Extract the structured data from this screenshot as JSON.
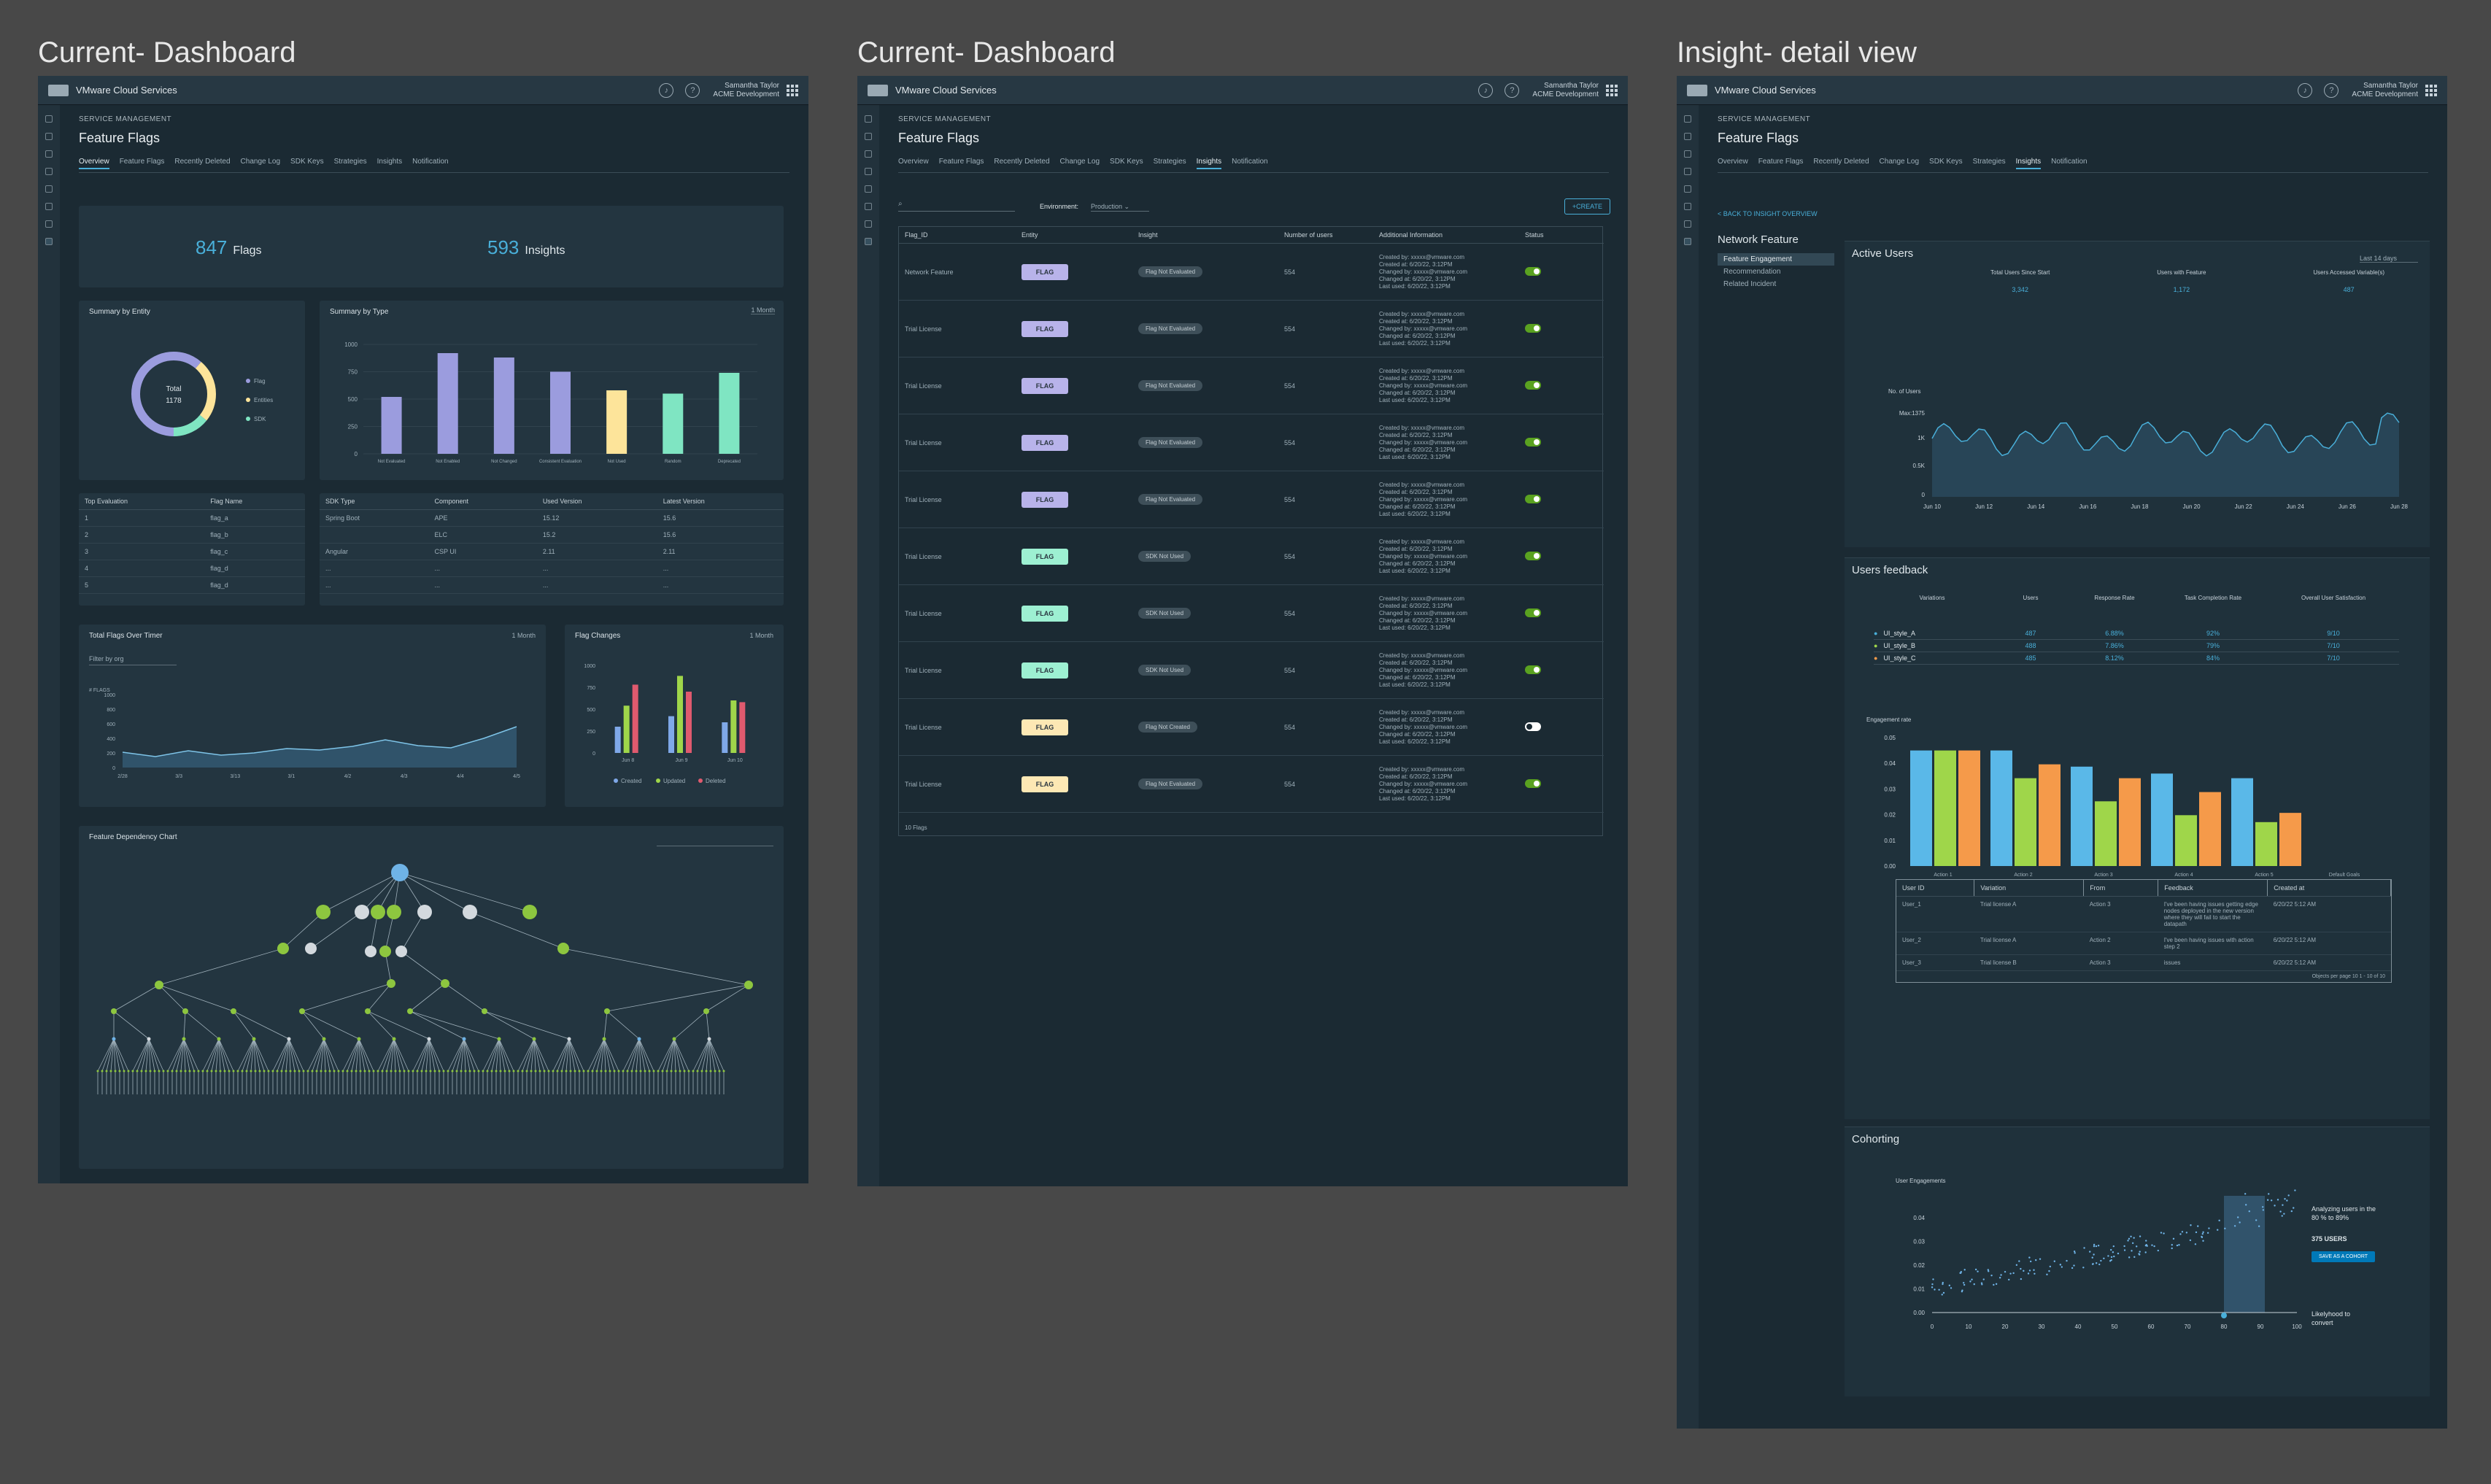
{
  "boards": {
    "b1": "Current- Dashboard",
    "b2": "Current- Dashboard",
    "b3": "Insight- detail view"
  },
  "header": {
    "app_name": "VMware Cloud Services",
    "user_name": "Samantha Taylor",
    "org": "ACME Development"
  },
  "page": {
    "section": "SERVICE MANAGEMENT",
    "title": "Feature Flags",
    "tabs": [
      "Overview",
      "Feature Flags",
      "Recently Deleted",
      "Change Log",
      "SDK Keys",
      "Strategies",
      "Insights",
      "Notification"
    ]
  },
  "overview": {
    "flags_count": "847",
    "flags_label": "Flags",
    "insights_count": "593",
    "insights_label": "Insights",
    "summary_entity_title": "Summary by Entity",
    "donut_center_1": "Total",
    "donut_center_2": "1178",
    "entity_legend": [
      "Flag",
      "Entities",
      "SDK"
    ],
    "summary_type_title": "Summary by Type",
    "summary_type_range": "1 Month",
    "type_chart": {
      "type": "bar",
      "categories": [
        "Not Evaluated",
        "Not Enabled",
        "Not Changed",
        "Consistent Evaluation",
        "Not Used",
        "Random",
        "Deprecated"
      ],
      "values": [
        520,
        920,
        880,
        750,
        580,
        550,
        740
      ],
      "colors": [
        "#9b9cde",
        "#9b9cde",
        "#9b9cde",
        "#9b9cde",
        "#fde49a",
        "#7fe5c2",
        "#7fe5c2"
      ],
      "yticks": [
        "1000",
        "750",
        "500",
        "250",
        "0"
      ],
      "ylim": [
        0,
        1000
      ]
    },
    "top_eval_headers": [
      "Top Evaluation",
      "Flag Name"
    ],
    "top_eval_rows": [
      [
        "1",
        "flag_a"
      ],
      [
        "2",
        "flag_b"
      ],
      [
        "3",
        "flag_c"
      ],
      [
        "4",
        "flag_d"
      ],
      [
        "5",
        "flag_d"
      ]
    ],
    "sdk_headers": [
      "SDK Type",
      "Component",
      "Used Version",
      "Latest Version"
    ],
    "sdk_rows": [
      [
        "Spring Boot",
        "APE",
        "15.12",
        "15.6"
      ],
      [
        "",
        "ELC",
        "15.2",
        "15.6"
      ],
      [
        "Angular",
        "CSP UI",
        "2.11",
        "2.11"
      ],
      [
        "...",
        "...",
        "...",
        "..."
      ],
      [
        "...",
        "...",
        "...",
        "..."
      ]
    ],
    "total_flags_title": "Total Flags Over Timer",
    "total_flags_range": "1 Month",
    "filter_label": "Filter by org",
    "total_flags_chart": {
      "type": "area",
      "ylabel": "# FLAGS",
      "yticks": [
        "1000",
        "800",
        "600",
        "400",
        "200",
        "0"
      ],
      "xticks": [
        "2/28",
        "3/3",
        "3/13",
        "3/1",
        "4/2",
        "4/3",
        "4/4",
        "4/5"
      ],
      "values": [
        210,
        150,
        230,
        170,
        200,
        260,
        240,
        290,
        380,
        300,
        270,
        400,
        560
      ]
    },
    "flag_changes_title": "Flag Changes",
    "flag_changes_range": "1 Month",
    "flag_changes_chart": {
      "type": "bar",
      "categories": [
        "Jun 8",
        "Jun 9",
        "Jun 10"
      ],
      "yticks": [
        "1000",
        "750",
        "500",
        "250",
        "0"
      ],
      "series": [
        {
          "name": "Created",
          "color": "#7fa8e8",
          "values": [
            300,
            420,
            350
          ]
        },
        {
          "name": "Updated",
          "color": "#9fd64a",
          "values": [
            540,
            880,
            600
          ]
        },
        {
          "name": "Deleted",
          "color": "#e05a6e",
          "values": [
            780,
            700,
            580
          ]
        }
      ]
    },
    "dependency_title": "Feature Dependency Chart"
  },
  "insights_list": {
    "environment_label": "Environment:",
    "environment_value": "Production",
    "create_label": "+CREATE",
    "headers": [
      "Flag_ID",
      "Entity",
      "Insight",
      "Number of users",
      "Additional Information",
      "Status"
    ],
    "rows": [
      {
        "flag": "Network Feature",
        "entity": "FLAG",
        "color": "#b8b3ea",
        "insight": "Flag Not Evaluated",
        "users": "554",
        "on": true
      },
      {
        "flag": "Trial License",
        "entity": "FLAG",
        "color": "#b8b3ea",
        "insight": "Flag Not Evaluated",
        "users": "554",
        "on": true
      },
      {
        "flag": "Trial License",
        "entity": "FLAG",
        "color": "#b8b3ea",
        "insight": "Flag Not Evaluated",
        "users": "554",
        "on": true
      },
      {
        "flag": "Trial License",
        "entity": "FLAG",
        "color": "#b8b3ea",
        "insight": "Flag Not Evaluated",
        "users": "554",
        "on": true
      },
      {
        "flag": "Trial License",
        "entity": "FLAG",
        "color": "#b8b3ea",
        "insight": "Flag Not Evaluated",
        "users": "554",
        "on": true
      },
      {
        "flag": "Trial License",
        "entity": "FLAG",
        "color": "#9df0d2",
        "insight": "SDK Not Used",
        "users": "554",
        "on": true
      },
      {
        "flag": "Trial License",
        "entity": "FLAG",
        "color": "#9df0d2",
        "insight": "SDK Not Used",
        "users": "554",
        "on": true
      },
      {
        "flag": "Trial License",
        "entity": "FLAG",
        "color": "#9df0d2",
        "insight": "SDK Not Used",
        "users": "554",
        "on": true
      },
      {
        "flag": "Trial License",
        "entity": "FLAG",
        "color": "#fde8b4",
        "insight": "Flag Not Created",
        "users": "554",
        "on": false
      },
      {
        "flag": "Trial License",
        "entity": "FLAG",
        "color": "#fde8b4",
        "insight": "Flag Not Evaluated",
        "users": "554",
        "on": true
      }
    ],
    "info_lines": [
      "Created by: xxxxx@vmware.com",
      "Created at: 6/20/22, 3:12PM",
      "Changed by: xxxxx@vmware.com",
      "Changed at: 6/20/22, 3:12PM",
      "Last used: 6/20/22, 3:12PM"
    ],
    "footer": "10 Flags"
  },
  "detail": {
    "back_label": "< BACK TO INSIGHT OVERVIEW",
    "feature_name": "Network Feature",
    "nav": [
      "Feature Engagement",
      "Recommendation",
      "Related Incident"
    ],
    "active_users_title": "Active Users",
    "active_users_range": "Last 14 days",
    "stat_labels": [
      "Total Users Since Start",
      "Users with Feature",
      "Users Accessed Variable(s)"
    ],
    "stat_values": [
      "3,342",
      "1,172",
      "487"
    ],
    "active_chart": {
      "type": "area",
      "ylabel": "No. of Users",
      "yticks": [
        "Max:1375",
        "1K",
        "0.5K",
        "0"
      ],
      "xticks": [
        "Jun 10",
        "Jun 12",
        "Jun 14",
        "Jun 16",
        "Jun 18",
        "Jun 20",
        "Jun 22",
        "Jun 24",
        "Jun 26",
        "Jun 28"
      ]
    },
    "feedback_title": "Users feedback",
    "feedback_headers": [
      "Variations",
      "Users",
      "Response Rate",
      "Task Completion Rate",
      "Overall User Satisfaction"
    ],
    "feedback_rows": [
      {
        "name": "UI_style_A",
        "color": "#49afd9",
        "users": "487",
        "rate": "6.88%",
        "task": "92%",
        "sat": "9/10"
      },
      {
        "name": "UI_style_B",
        "color": "#9fd64a",
        "users": "488",
        "rate": "7.86%",
        "task": "79%",
        "sat": "7/10"
      },
      {
        "name": "UI_style_C",
        "color": "#f59a4a",
        "users": "485",
        "rate": "8.12%",
        "task": "84%",
        "sat": "7/10"
      }
    ],
    "engagement_chart": {
      "type": "bar",
      "ylabel": "Engagement rate",
      "yticks": [
        "0.05",
        "0.04",
        "0.03",
        "0.02",
        "0.01",
        "0.00"
      ],
      "categories": [
        "Action 1",
        "Action 2",
        "Action 3",
        "Action 4",
        "Action 5",
        "Default Goals"
      ],
      "series": [
        {
          "name": "UI_style_A",
          "color": "#5ab8e8",
          "values": [
            0.055,
            0.05,
            0.043,
            0.04,
            0.038,
            0.0
          ]
        },
        {
          "name": "UI_style_B",
          "color": "#9fd64a",
          "values": [
            0.055,
            0.038,
            0.028,
            0.022,
            0.019,
            0.0
          ]
        },
        {
          "name": "UI_style_C",
          "color": "#f59a4a",
          "values": [
            0.055,
            0.044,
            0.038,
            0.032,
            0.023,
            0.0
          ]
        }
      ]
    },
    "user_table_headers": [
      "User ID",
      "Variation",
      "From",
      "Feedback",
      "Created at"
    ],
    "user_table_rows": [
      [
        "User_1",
        "Trial license A",
        "Action 3",
        "I've been having issues getting edge nodes deployed in the new version where they will fail to start the datapath",
        "6/20/22 5:12 AM"
      ],
      [
        "User_2",
        "Trial license A",
        "Action 2",
        "I've been having issues with action step 2",
        "6/20/22 5:12 AM"
      ],
      [
        "User_3",
        "Trial license B",
        "Action 3",
        "issues",
        "6/20/22 5:12 AM"
      ]
    ],
    "pager": "Objects per page 10  1 - 10 of 10",
    "cohorting_title": "Cohorting",
    "cohort_chart": {
      "type": "scatter",
      "ylabel": "User Engagements",
      "yticks": [
        "0.04",
        "0.03",
        "0.02",
        "0.01",
        "0.00"
      ],
      "xticks": [
        "0",
        "10",
        "20",
        "30",
        "40",
        "50",
        "60",
        "70",
        "80",
        "90",
        "100"
      ]
    },
    "cohort_note_1": "Analyzing users in the 80 % to 89%",
    "cohort_users": "375 USERS",
    "cohort_button": "SAVE AS A COHORT",
    "cohort_note_2": "Likelyhood to convert"
  }
}
